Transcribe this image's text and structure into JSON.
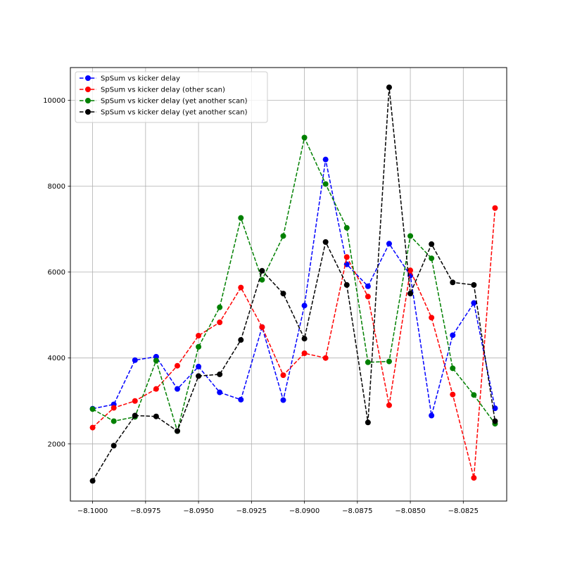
{
  "chart_data": {
    "type": "line",
    "title": "",
    "xlabel": "",
    "ylabel": "",
    "xlim": [
      -8.10105,
      -8.08045
    ],
    "ylim": [
      670,
      10760
    ],
    "x_ticks": [
      {
        "value": -8.1,
        "label": "−8.1000"
      },
      {
        "value": -8.0975,
        "label": "−8.0975"
      },
      {
        "value": -8.095,
        "label": "−8.0950"
      },
      {
        "value": -8.0925,
        "label": "−8.0925"
      },
      {
        "value": -8.09,
        "label": "−8.0900"
      },
      {
        "value": -8.0875,
        "label": "−8.0875"
      },
      {
        "value": -8.085,
        "label": "−8.0850"
      },
      {
        "value": -8.0825,
        "label": "−8.0825"
      }
    ],
    "y_ticks": [
      {
        "value": 2000,
        "label": "2000"
      },
      {
        "value": 4000,
        "label": "4000"
      },
      {
        "value": 6000,
        "label": "6000"
      },
      {
        "value": 8000,
        "label": "8000"
      },
      {
        "value": 10000,
        "label": "10000"
      }
    ],
    "grid": true,
    "legend_position": "top-left",
    "x": [
      -8.1,
      -8.099,
      -8.098,
      -8.097,
      -8.096,
      -8.095,
      -8.094,
      -8.093,
      -8.092,
      -8.091,
      -8.09,
      -8.089,
      -8.088,
      -8.087,
      -8.086,
      -8.085,
      -8.084,
      -8.083,
      -8.082,
      -8.081
    ],
    "series": [
      {
        "name": "SpSum vs kicker delay",
        "color": "#0000ff",
        "values": [
          2820,
          2920,
          3950,
          4030,
          3280,
          3800,
          3200,
          3030,
          4720,
          3020,
          5220,
          8620,
          6180,
          5670,
          6660,
          5920,
          2660,
          4530,
          5280,
          2830
        ]
      },
      {
        "name": "SpSum vs kicker delay (other scan)",
        "color": "#ff0000",
        "values": [
          2380,
          2840,
          3000,
          3280,
          3820,
          4520,
          4830,
          5640,
          4720,
          3600,
          4110,
          4000,
          6350,
          5430,
          2900,
          6040,
          4940,
          3150,
          1210,
          7490
        ]
      },
      {
        "name": "SpSum vs kicker delay (yet another scan)",
        "color": "#008000",
        "values": [
          2810,
          2530,
          2630,
          3940,
          2300,
          4260,
          5180,
          7260,
          5820,
          6840,
          9130,
          8050,
          7030,
          3900,
          3920,
          6840,
          6320,
          3760,
          3140,
          2470
        ]
      },
      {
        "name": "SpSum vs kicker delay (yet another scan)",
        "color": "#000000",
        "values": [
          1140,
          1960,
          2660,
          2640,
          2300,
          3580,
          3620,
          4420,
          6030,
          5500,
          4450,
          6700,
          5700,
          2500,
          10300,
          5500,
          6650,
          5760,
          5700,
          2530
        ]
      }
    ]
  }
}
